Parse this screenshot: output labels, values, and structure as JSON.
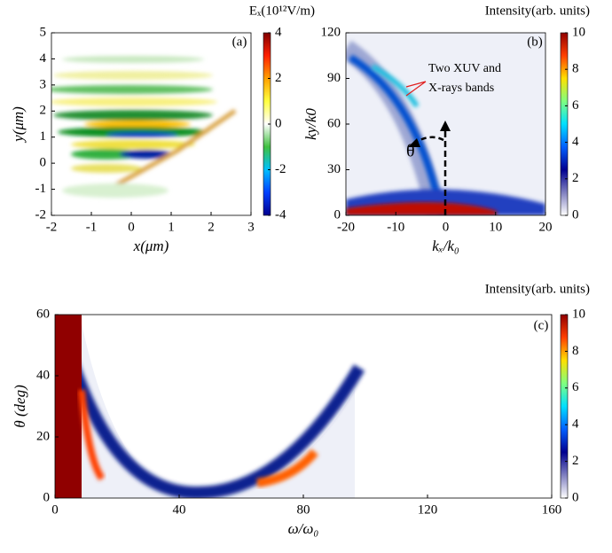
{
  "chart_data": [
    {
      "type": "heatmap",
      "panel_label": "(a)",
      "colorbar_title": "Eₓ(10¹²V/m)",
      "xlabel": "x(μm)",
      "ylabel": "y(μm)",
      "xlim": [
        -2,
        3
      ],
      "xticks": [
        -2,
        -1,
        0,
        1,
        2,
        3
      ],
      "ylim": [
        -2,
        5
      ],
      "yticks": [
        -2,
        -1,
        0,
        1,
        2,
        3,
        4,
        5
      ],
      "clim": [
        -4,
        4
      ],
      "cticks": [
        -4,
        -2,
        0,
        2,
        4
      ],
      "colormap": [
        "#00008f",
        "#0040ff",
        "#00c0ff",
        "#40c040",
        "#ffffff",
        "#ffff40",
        "#ffa000",
        "#ff2000",
        "#800000"
      ]
    },
    {
      "type": "heatmap",
      "panel_label": "(b)",
      "colorbar_title": "Intensity(arb. units)",
      "xlabel": "kₓ/k₀",
      "ylabel": "ky/k0",
      "xlim": [
        -20,
        20
      ],
      "xticks": [
        -20,
        -10,
        0,
        10,
        20
      ],
      "ylim": [
        0,
        120
      ],
      "yticks": [
        0,
        30,
        60,
        90,
        120
      ],
      "clim": [
        0,
        10
      ],
      "cticks": [
        0,
        2,
        4,
        6,
        8,
        10
      ],
      "colormap": [
        "#ffffff",
        "#8080c0",
        "#000090",
        "#0060ff",
        "#00e0ff",
        "#80ff80",
        "#ffe000",
        "#ff4000",
        "#900000"
      ],
      "annotations": [
        "Two XUV and",
        "X-rays bands",
        "θ"
      ]
    },
    {
      "type": "heatmap",
      "panel_label": "(c)",
      "colorbar_title": "Intensity(arb. units)",
      "xlabel": "ω/ω₀",
      "ylabel": "θ (deg)",
      "xlim": [
        0,
        160
      ],
      "xticks": [
        0,
        40,
        80,
        120,
        160
      ],
      "ylim": [
        0,
        60
      ],
      "yticks": [
        0,
        20,
        40,
        60
      ],
      "clim": [
        0,
        10
      ],
      "cticks": [
        0,
        2,
        4,
        6,
        8,
        10
      ],
      "colormap": [
        "#ffffff",
        "#8080c0",
        "#000090",
        "#0060ff",
        "#00e0ff",
        "#80ff80",
        "#ffe000",
        "#ff4000",
        "#900000"
      ]
    }
  ]
}
